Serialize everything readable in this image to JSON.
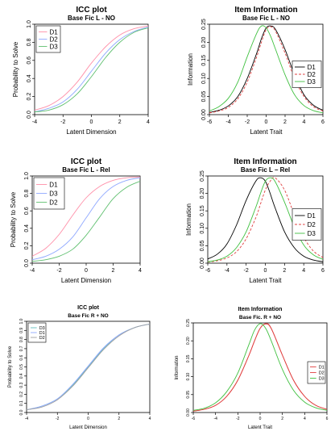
{
  "chart_data": [
    {
      "type": "line",
      "title": "ICC plot",
      "subtitle": "Base Fic L - NO",
      "xlabel": "Latent Dimension",
      "ylabel": "Probability to Solve",
      "xlim": [
        -4,
        4
      ],
      "ylim": [
        0,
        1
      ],
      "xticks": [
        "-4",
        "-2",
        "0",
        "2",
        "4"
      ],
      "yticks": [
        "0.0",
        "0.2",
        "0.4",
        "0.6",
        "0.8",
        "1.0"
      ],
      "legend_position": "top-left",
      "grid": false,
      "series": [
        {
          "name": "D1",
          "color": "#ff8fa8",
          "dash": "solid",
          "x": [
            -4,
            -3,
            -2,
            -1,
            0,
            1,
            2,
            3,
            4
          ],
          "y": [
            0.05,
            0.1,
            0.2,
            0.36,
            0.57,
            0.75,
            0.88,
            0.95,
            0.98
          ]
        },
        {
          "name": "D2",
          "color": "#8fa8ff",
          "dash": "solid",
          "x": [
            -4,
            -3,
            -2,
            -1,
            0,
            1,
            2,
            3,
            4
          ],
          "y": [
            0.03,
            0.07,
            0.14,
            0.28,
            0.48,
            0.68,
            0.83,
            0.92,
            0.97
          ]
        },
        {
          "name": "D3",
          "color": "#60c070",
          "dash": "solid",
          "x": [
            -4,
            -3,
            -2,
            -1,
            0,
            1,
            2,
            3,
            4
          ],
          "y": [
            0.03,
            0.05,
            0.11,
            0.23,
            0.42,
            0.63,
            0.8,
            0.91,
            0.96
          ]
        }
      ]
    },
    {
      "type": "line",
      "title": "Item Information",
      "subtitle": "Base Fic L - NO",
      "xlabel": "Latent Trait",
      "ylabel": "Information",
      "xlim": [
        -6,
        6
      ],
      "ylim": [
        0,
        0.25
      ],
      "xticks": [
        "-6",
        "-4",
        "-2",
        "0",
        "2",
        "4",
        "6"
      ],
      "yticks": [
        "0.00",
        "0.05",
        "0.10",
        "0.15",
        "0.20",
        "0.25"
      ],
      "legend_position": "right",
      "grid": false,
      "series": [
        {
          "name": "D1",
          "color": "#000000",
          "dash": "solid",
          "x": [
            -6,
            -5,
            -4,
            -3,
            -2,
            -1,
            -0.5,
            0,
            0.5,
            1,
            2,
            3,
            4,
            5,
            6
          ],
          "y": [
            0.006,
            0.012,
            0.024,
            0.05,
            0.1,
            0.17,
            0.21,
            0.24,
            0.245,
            0.235,
            0.18,
            0.11,
            0.055,
            0.026,
            0.012
          ]
        },
        {
          "name": "D2",
          "color": "#e04040",
          "dash": "dashed",
          "x": [
            -6,
            -5,
            -4,
            -3,
            -2,
            -1,
            -0.5,
            0,
            0.5,
            1,
            2,
            3,
            4,
            5,
            6
          ],
          "y": [
            0.005,
            0.01,
            0.02,
            0.044,
            0.09,
            0.16,
            0.2,
            0.235,
            0.243,
            0.23,
            0.17,
            0.1,
            0.05,
            0.022,
            0.01
          ]
        },
        {
          "name": "D3",
          "color": "#40c040",
          "dash": "solid",
          "x": [
            -6,
            -5,
            -4,
            -3,
            -2,
            -1,
            -0.5,
            0,
            0.5,
            1,
            2,
            3,
            4,
            5,
            6
          ],
          "y": [
            0.01,
            0.022,
            0.045,
            0.09,
            0.16,
            0.225,
            0.245,
            0.24,
            0.215,
            0.18,
            0.11,
            0.055,
            0.025,
            0.011,
            0.005
          ]
        }
      ]
    },
    {
      "type": "line",
      "title": "ICC plot",
      "subtitle": "Base Fic L - Rel",
      "xlabel": "Latent Dimension",
      "ylabel": "Probability to Solve",
      "xlim": [
        -4,
        4
      ],
      "ylim": [
        0,
        1
      ],
      "xticks": [
        "-4",
        "-2",
        "0",
        "2",
        "4"
      ],
      "yticks": [
        "0.0",
        "0.2",
        "0.4",
        "0.6",
        "0.8",
        "1.0"
      ],
      "legend_position": "top-left",
      "grid": false,
      "series": [
        {
          "name": "D1",
          "color": "#ff8fa8",
          "dash": "solid",
          "x": [
            -4,
            -3,
            -2,
            -1,
            0,
            1,
            2,
            3,
            4
          ],
          "y": [
            0.08,
            0.17,
            0.33,
            0.55,
            0.75,
            0.88,
            0.95,
            0.98,
            0.99
          ]
        },
        {
          "name": "D3",
          "color": "#8fa8ff",
          "dash": "solid",
          "x": [
            -4,
            -3,
            -2,
            -1,
            0,
            1,
            2,
            3,
            4
          ],
          "y": [
            0.04,
            0.08,
            0.16,
            0.3,
            0.52,
            0.74,
            0.88,
            0.95,
            0.98
          ]
        },
        {
          "name": "D2",
          "color": "#60c070",
          "dash": "solid",
          "x": [
            -4,
            -3,
            -2,
            -1,
            0,
            1,
            2,
            3,
            4
          ],
          "y": [
            0.02,
            0.04,
            0.08,
            0.16,
            0.32,
            0.53,
            0.74,
            0.87,
            0.94
          ]
        }
      ]
    },
    {
      "type": "line",
      "title": "Item Information",
      "subtitle": "Base Fic L – Rel",
      "xlabel": "Latent Trait",
      "ylabel": "Information",
      "xlim": [
        -6,
        6
      ],
      "ylim": [
        0,
        0.25
      ],
      "xticks": [
        "-6",
        "-4",
        "-2",
        "0",
        "2",
        "4",
        "6"
      ],
      "yticks": [
        "0.00",
        "0.05",
        "0.10",
        "0.15",
        "0.20",
        "0.25"
      ],
      "legend_position": "right",
      "grid": false,
      "series": [
        {
          "name": "D1",
          "color": "#000000",
          "dash": "solid",
          "x": [
            -6,
            -5,
            -4,
            -3,
            -2,
            -1,
            -0.5,
            0,
            0.5,
            1,
            2,
            3,
            4,
            5,
            6
          ],
          "y": [
            0.012,
            0.026,
            0.055,
            0.11,
            0.18,
            0.235,
            0.245,
            0.235,
            0.2,
            0.16,
            0.09,
            0.045,
            0.02,
            0.009,
            0.004
          ]
        },
        {
          "name": "D2",
          "color": "#e04040",
          "dash": "dashed",
          "x": [
            -6,
            -5,
            -4,
            -3,
            -2,
            -1,
            -0.5,
            0,
            0.5,
            1,
            2,
            3,
            4,
            5,
            6
          ],
          "y": [
            0.003,
            0.007,
            0.015,
            0.033,
            0.07,
            0.13,
            0.17,
            0.21,
            0.235,
            0.245,
            0.21,
            0.14,
            0.075,
            0.035,
            0.016
          ]
        },
        {
          "name": "D3",
          "color": "#40c040",
          "dash": "solid",
          "x": [
            -6,
            -5,
            -4,
            -3,
            -2,
            -1,
            -0.5,
            0,
            0.5,
            1,
            2,
            3,
            4,
            5,
            6
          ],
          "y": [
            0.004,
            0.009,
            0.02,
            0.045,
            0.09,
            0.16,
            0.2,
            0.235,
            0.245,
            0.235,
            0.175,
            0.105,
            0.052,
            0.024,
            0.011
          ]
        }
      ]
    },
    {
      "type": "line",
      "title": "ICC plot",
      "subtitle": "Base Fic R + NO",
      "xlabel": "Latent Dimension",
      "ylabel": "Probability to Solve",
      "xlim": [
        -4,
        4
      ],
      "ylim": [
        0,
        1
      ],
      "xticks": [
        "-4",
        "-2",
        "0",
        "2",
        "4"
      ],
      "yticks": [
        "0.0",
        "0.1",
        "0.2",
        "0.3",
        "0.4",
        "0.5",
        "0.6",
        "0.7",
        "0.8",
        "0.9",
        "1.0"
      ],
      "legend_position": "top-left",
      "grid": false,
      "series": [
        {
          "name": "D3",
          "color": "#60c0c0",
          "dash": "solid",
          "x": [
            -4,
            -3,
            -2,
            -1,
            0,
            1,
            2,
            3,
            4
          ],
          "y": [
            0.03,
            0.07,
            0.15,
            0.3,
            0.5,
            0.7,
            0.85,
            0.93,
            0.97
          ]
        },
        {
          "name": "D1",
          "color": "#8fa8ff",
          "dash": "solid",
          "x": [
            -4,
            -3,
            -2,
            -1,
            0,
            1,
            2,
            3,
            4
          ],
          "y": [
            0.03,
            0.07,
            0.15,
            0.31,
            0.51,
            0.71,
            0.85,
            0.93,
            0.97
          ]
        },
        {
          "name": "D2",
          "color": "#a0a0a0",
          "dash": "solid",
          "x": [
            -4,
            -3,
            -2,
            -1,
            0,
            1,
            2,
            3,
            4
          ],
          "y": [
            0.03,
            0.06,
            0.14,
            0.29,
            0.49,
            0.69,
            0.84,
            0.93,
            0.97
          ]
        }
      ]
    },
    {
      "type": "line",
      "title": "Item Information",
      "subtitle": "Base Fic. R + NO",
      "xlabel": "Latent Trait",
      "ylabel": "Information",
      "xlim": [
        -6,
        6
      ],
      "ylim": [
        0,
        0.25
      ],
      "xticks": [
        "-6",
        "-4",
        "-2",
        "0",
        "2",
        "4",
        "6"
      ],
      "yticks": [
        "0.00",
        "0.05",
        "0.10",
        "0.15",
        "0.20",
        "0.25"
      ],
      "legend_position": "right",
      "grid": false,
      "series": [
        {
          "name": "D1",
          "color": "#e04040",
          "dash": "solid",
          "x": [
            -6,
            -5,
            -4,
            -3,
            -2,
            -1,
            -0.5,
            0,
            0.5,
            1,
            2,
            3,
            4,
            5,
            6
          ],
          "y": [
            0.004,
            0.009,
            0.02,
            0.045,
            0.09,
            0.16,
            0.2,
            0.235,
            0.248,
            0.235,
            0.16,
            0.09,
            0.045,
            0.02,
            0.009
          ]
        },
        {
          "name": "D2",
          "color": "#e04040",
          "dash": "solid",
          "x": [
            -6,
            -5,
            -4,
            -3,
            -2,
            -1,
            -0.5,
            0,
            0.5,
            1,
            2,
            3,
            4,
            5,
            6
          ],
          "y": [
            0.004,
            0.009,
            0.02,
            0.045,
            0.09,
            0.16,
            0.2,
            0.235,
            0.247,
            0.234,
            0.16,
            0.09,
            0.045,
            0.02,
            0.009
          ]
        },
        {
          "name": "D3",
          "color": "#40c040",
          "dash": "solid",
          "x": [
            -6,
            -5,
            -4,
            -3,
            -2,
            -1,
            -0.5,
            0,
            0.5,
            1,
            2,
            3,
            4,
            5,
            6
          ],
          "y": [
            0.006,
            0.012,
            0.027,
            0.058,
            0.11,
            0.19,
            0.23,
            0.248,
            0.235,
            0.2,
            0.12,
            0.062,
            0.029,
            0.013,
            0.006
          ]
        }
      ]
    }
  ]
}
